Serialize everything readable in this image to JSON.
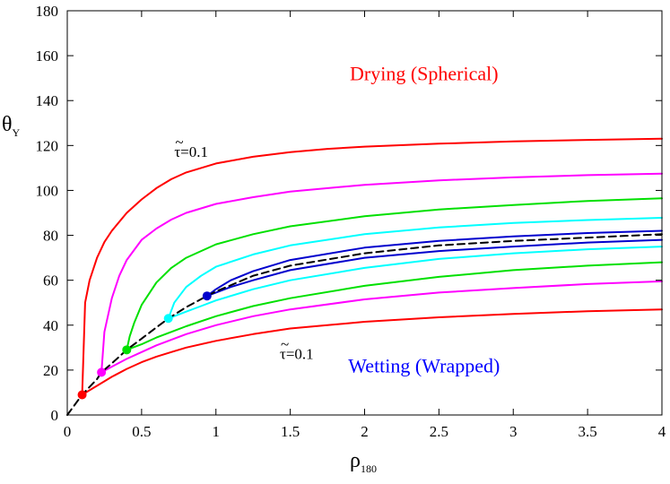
{
  "chart_data": {
    "type": "line",
    "title": "",
    "xlabel": "ρ",
    "xlabel_sub": "180",
    "ylabel": "θ",
    "ylabel_sub": "Y",
    "xlim": [
      0,
      4
    ],
    "ylim": [
      0,
      180
    ],
    "xticks": [
      0,
      0.5,
      1,
      1.5,
      2,
      2.5,
      3,
      3.5,
      4
    ],
    "xtick_labels": [
      "0",
      "0.5",
      "1",
      "1.5",
      "2",
      "2.5",
      "3",
      "3.5",
      "4"
    ],
    "yticks": [
      0,
      20,
      40,
      60,
      80,
      100,
      120,
      140,
      160,
      180
    ],
    "ytick_labels": [
      "0",
      "20",
      "40",
      "60",
      "80",
      "100",
      "120",
      "140",
      "160",
      "180"
    ],
    "grid": false,
    "legend": "none",
    "annotations": [
      {
        "text": "Drying (Spherical)",
        "x": 2.4,
        "y": 149,
        "color": "#ff0000",
        "name": "drying-region-label"
      },
      {
        "text": "Wetting (Wrapped)",
        "x": 2.4,
        "y": 19,
        "color": "#0000ff",
        "name": "wetting-region-label"
      },
      {
        "text": "τ=0.1",
        "tilde": "~",
        "x": 0.72,
        "y": 115,
        "color": "#000000",
        "name": "tau-upper-label"
      },
      {
        "text": "τ=0.1",
        "tilde": "~",
        "x": 1.43,
        "y": 25,
        "color": "#000000",
        "name": "tau-lower-label"
      }
    ],
    "series": [
      {
        "color": "#ff0000",
        "style": "solid",
        "x": [
          0.1,
          0.12,
          0.15,
          0.2,
          0.25,
          0.3,
          0.4,
          0.5,
          0.6,
          0.7,
          0.8,
          1.0,
          1.25,
          1.5,
          1.75,
          2.0,
          2.5,
          3.0,
          3.5,
          4.0
        ],
        "y": [
          9,
          50,
          60,
          70,
          77,
          82,
          90,
          96,
          101,
          105,
          108,
          112,
          115,
          117,
          118.5,
          119.5,
          120.8,
          121.8,
          122.5,
          123
        ]
      },
      {
        "color": "#ff0000",
        "style": "solid",
        "x": [
          0.1,
          0.15,
          0.2,
          0.3,
          0.4,
          0.5,
          0.6,
          0.7,
          0.8,
          1.0,
          1.25,
          1.5,
          1.75,
          2.0,
          2.5,
          3.0,
          3.5,
          4.0
        ],
        "y": [
          9,
          11,
          13,
          17,
          20.5,
          23.5,
          26,
          28,
          30,
          33,
          36,
          38.5,
          40,
          41.5,
          43.5,
          45,
          46.2,
          47
        ]
      },
      {
        "color": "#ff00ff",
        "style": "solid",
        "x": [
          0.23,
          0.25,
          0.3,
          0.35,
          0.4,
          0.5,
          0.6,
          0.7,
          0.8,
          1.0,
          1.25,
          1.5,
          2.0,
          2.5,
          3.0,
          3.5,
          4.0
        ],
        "y": [
          19,
          37,
          52,
          62,
          69,
          78,
          83,
          87,
          90,
          94,
          97,
          99.5,
          102.5,
          104.5,
          105.8,
          106.8,
          107.5
        ]
      },
      {
        "color": "#ff00ff",
        "style": "solid",
        "x": [
          0.23,
          0.3,
          0.4,
          0.5,
          0.6,
          0.7,
          0.8,
          1.0,
          1.25,
          1.5,
          2.0,
          2.5,
          3.0,
          3.5,
          4.0
        ],
        "y": [
          19,
          21.5,
          25,
          28,
          31,
          33.5,
          36,
          40,
          44,
          47,
          51.5,
          54.5,
          56.5,
          58.3,
          59.5
        ]
      },
      {
        "color": "#00e000",
        "style": "solid",
        "x": [
          0.4,
          0.42,
          0.45,
          0.5,
          0.6,
          0.7,
          0.8,
          1.0,
          1.25,
          1.5,
          2.0,
          2.5,
          3.0,
          3.5,
          4.0
        ],
        "y": [
          29,
          35,
          41,
          49,
          59,
          65.5,
          70,
          76,
          80.5,
          84,
          88.5,
          91.5,
          93.5,
          95.3,
          96.5
        ]
      },
      {
        "color": "#00e000",
        "style": "solid",
        "x": [
          0.4,
          0.5,
          0.6,
          0.7,
          0.8,
          1.0,
          1.25,
          1.5,
          2.0,
          2.5,
          3.0,
          3.5,
          4.0
        ],
        "y": [
          29,
          31.5,
          34.5,
          37,
          39.5,
          44,
          48.5,
          52,
          57.5,
          61.5,
          64.5,
          66.5,
          68
        ]
      },
      {
        "color": "#00ffff",
        "style": "solid",
        "x": [
          0.68,
          0.72,
          0.8,
          0.9,
          1.0,
          1.25,
          1.5,
          2.0,
          2.5,
          3.0,
          3.5,
          4.0
        ],
        "y": [
          43,
          50,
          57,
          62,
          66,
          71.5,
          75.5,
          80.5,
          83.5,
          85.5,
          86.8,
          87.8
        ]
      },
      {
        "color": "#00ffff",
        "style": "solid",
        "x": [
          0.68,
          0.8,
          0.9,
          1.0,
          1.25,
          1.5,
          2.0,
          2.5,
          3.0,
          3.5,
          4.0
        ],
        "y": [
          43,
          46,
          48.5,
          51,
          56,
          60,
          65.5,
          69.5,
          72,
          73.8,
          75
        ]
      },
      {
        "color": "#0000cd",
        "style": "solid",
        "x": [
          0.94,
          1.0,
          1.1,
          1.25,
          1.5,
          2.0,
          2.5,
          3.0,
          3.5,
          4.0
        ],
        "y": [
          53,
          56,
          60,
          64,
          69,
          74.5,
          77.5,
          79.5,
          81,
          82
        ]
      },
      {
        "color": "#0000cd",
        "style": "solid",
        "x": [
          0.94,
          1.0,
          1.1,
          1.25,
          1.5,
          2.0,
          2.5,
          3.0,
          3.5,
          4.0
        ],
        "y": [
          53,
          54.5,
          57,
          60,
          64.5,
          70,
          73,
          75,
          76.8,
          78
        ]
      },
      {
        "color": "#000000",
        "style": "dashed",
        "x": [
          0,
          0.1,
          0.2,
          0.23,
          0.3,
          0.4,
          0.5,
          0.6,
          0.68,
          0.8,
          0.94,
          1.0,
          1.25,
          1.5,
          2.0,
          2.5,
          3.0,
          3.5,
          4.0
        ],
        "y": [
          0,
          9,
          16,
          19,
          23,
          29,
          34,
          39,
          43,
          48,
          53,
          55,
          62,
          66.5,
          72,
          75.5,
          77.5,
          79,
          80.5
        ]
      }
    ],
    "markers": [
      {
        "x": 0.1,
        "y": 9,
        "color": "#ff0000"
      },
      {
        "x": 0.23,
        "y": 19,
        "color": "#ff00ff"
      },
      {
        "x": 0.4,
        "y": 29,
        "color": "#00e000"
      },
      {
        "x": 0.68,
        "y": 43,
        "color": "#00ffff"
      },
      {
        "x": 0.94,
        "y": 53,
        "color": "#0000cd"
      }
    ]
  }
}
